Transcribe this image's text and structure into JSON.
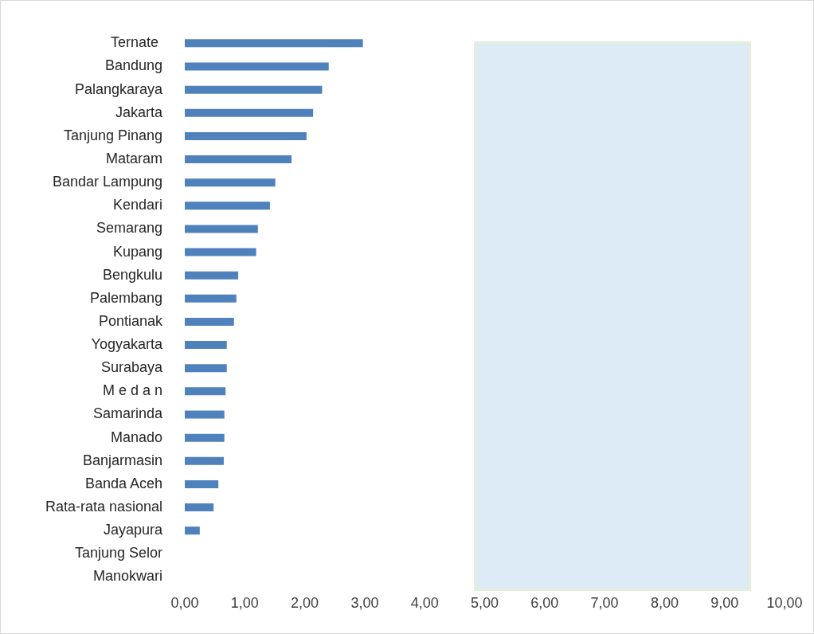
{
  "chart_data": {
    "type": "bar",
    "orientation": "horizontal",
    "categories": [
      "Ternate ",
      "Bandung",
      "Palangkaraya",
      "Jakarta",
      "Tanjung Pinang",
      "Mataram",
      "Bandar Lampung",
      "Kendari",
      "Semarang",
      "Kupang",
      "Bengkulu",
      "Palembang",
      "Pontianak",
      "Yogyakarta",
      "Surabaya",
      "M e d a n",
      "Samarinda",
      "Manado",
      "Banjarmasin",
      "Banda Aceh",
      "Rata-rata nasional",
      "Jayapura",
      "Tanjung Selor",
      "Manokwari"
    ],
    "values": [
      2.97,
      2.4,
      2.29,
      2.14,
      2.03,
      1.78,
      1.51,
      1.42,
      1.22,
      1.19,
      0.89,
      0.86,
      0.82,
      0.7,
      0.7,
      0.68,
      0.66,
      0.66,
      0.65,
      0.56,
      0.48,
      0.25,
      0,
      0
    ],
    "color": "#4f81bd",
    "xlim": [
      0,
      10
    ],
    "xticks": [
      {
        "value": 0,
        "label": "0,00"
      },
      {
        "value": 1,
        "label": "1,00"
      },
      {
        "value": 2,
        "label": "2,00"
      },
      {
        "value": 3,
        "label": "3,00"
      },
      {
        "value": 4,
        "label": "4,00"
      },
      {
        "value": 5,
        "label": "5,00"
      },
      {
        "value": 6,
        "label": "6,00"
      },
      {
        "value": 7,
        "label": "7,00"
      },
      {
        "value": 8,
        "label": "8,00"
      },
      {
        "value": 9,
        "label": "9,00"
      },
      {
        "value": 10,
        "label": "10,00"
      }
    ],
    "grid": false,
    "legend": false
  }
}
